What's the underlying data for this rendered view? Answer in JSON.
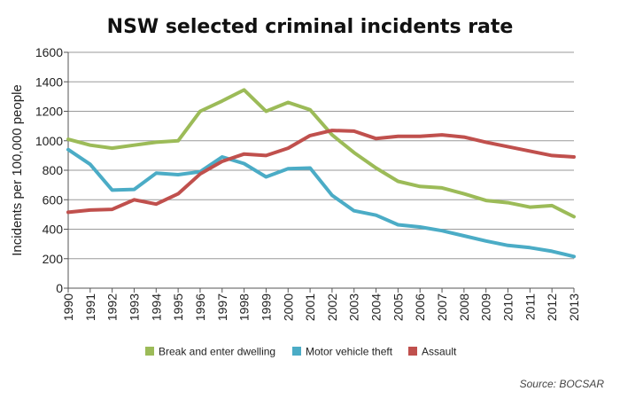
{
  "chart_data": {
    "type": "line",
    "title": "NSW selected criminal incidents rate",
    "xlabel": "",
    "ylabel": "Incidents per 100,000 people",
    "ylim": [
      0,
      1600
    ],
    "yticks": [
      0,
      200,
      400,
      600,
      800,
      1000,
      1200,
      1400,
      1600
    ],
    "grid": true,
    "legend_position": "bottom",
    "source": "Source: BOCSAR",
    "x": [
      "1990",
      "1991",
      "1992",
      "1993",
      "1994",
      "1995",
      "1996",
      "1997",
      "1998",
      "1999",
      "2000",
      "2001",
      "2002",
      "2003",
      "2004",
      "2005",
      "2006",
      "2007",
      "2008",
      "2009",
      "2010",
      "2011",
      "2012",
      "2013"
    ],
    "series": [
      {
        "name": "Break and enter dwelling",
        "color": "#9cbb58",
        "values": [
          1010,
          970,
          950,
          970,
          990,
          1000,
          1200,
          1270,
          1345,
          1200,
          1260,
          1210,
          1040,
          920,
          815,
          725,
          690,
          680,
          640,
          595,
          580,
          550,
          560,
          485
        ]
      },
      {
        "name": "Motor vehicle theft",
        "color": "#4bacc6",
        "values": [
          940,
          840,
          665,
          670,
          780,
          770,
          790,
          890,
          845,
          755,
          810,
          815,
          630,
          525,
          495,
          430,
          415,
          390,
          355,
          320,
          290,
          275,
          250,
          215
        ]
      },
      {
        "name": "Assault",
        "color": "#c0504d",
        "values": [
          515,
          530,
          535,
          600,
          570,
          640,
          775,
          860,
          910,
          900,
          950,
          1035,
          1070,
          1065,
          1015,
          1030,
          1030,
          1040,
          1025,
          990,
          960,
          930,
          900,
          890
        ]
      }
    ]
  }
}
